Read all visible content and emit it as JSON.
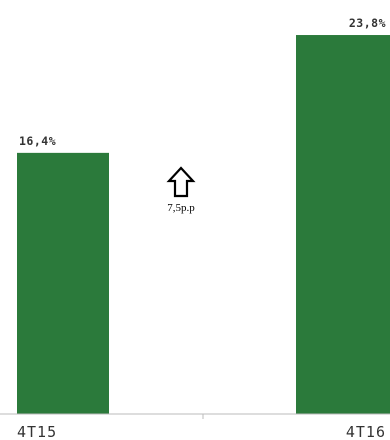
{
  "chart_data": {
    "type": "bar",
    "categories": [
      "4T15",
      "4T16"
    ],
    "values": [
      16.4,
      23.8
    ],
    "value_labels": [
      "16,4%",
      "23,8%"
    ],
    "bar_color": "#2b7a3b",
    "ylim": [
      0,
      26
    ],
    "grid": false,
    "legend": "none",
    "annotation": {
      "text": "7,5p.p",
      "icon": "up-arrow-icon"
    }
  }
}
